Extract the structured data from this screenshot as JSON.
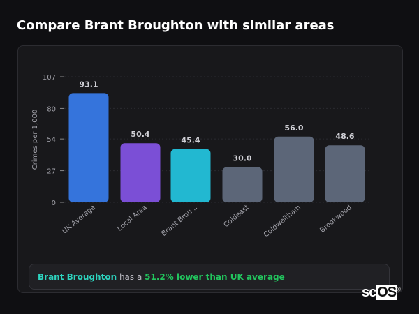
{
  "title": "Compare Brant Broughton with similar areas",
  "chart_data": {
    "type": "bar",
    "title": "",
    "xlabel": "",
    "ylabel": "Crimes per 1,000",
    "ylim": [
      0,
      107
    ],
    "yticks": [
      0,
      27,
      54,
      80,
      107
    ],
    "grid": true,
    "categories": [
      "UK Average",
      "Local Area",
      "Brant Brou...",
      "Coldeast",
      "Coldwaltham",
      "Brookwood"
    ],
    "values": [
      93.1,
      50.4,
      45.4,
      30.0,
      56.0,
      48.6
    ],
    "data_labels": [
      "93.1",
      "50.4",
      "45.4",
      "30.0",
      "56.0",
      "48.6"
    ],
    "colors": [
      "#3574dc",
      "#7b4fd6",
      "#22b8d1",
      "#5c6678",
      "#5c6678",
      "#5c6678"
    ]
  },
  "summary": {
    "area": "Brant Broughton",
    "middle": " has a ",
    "comparison": "51.2% lower than UK average"
  },
  "logo": {
    "text_a": "sc",
    "text_b": "OS",
    "mark": "®"
  }
}
